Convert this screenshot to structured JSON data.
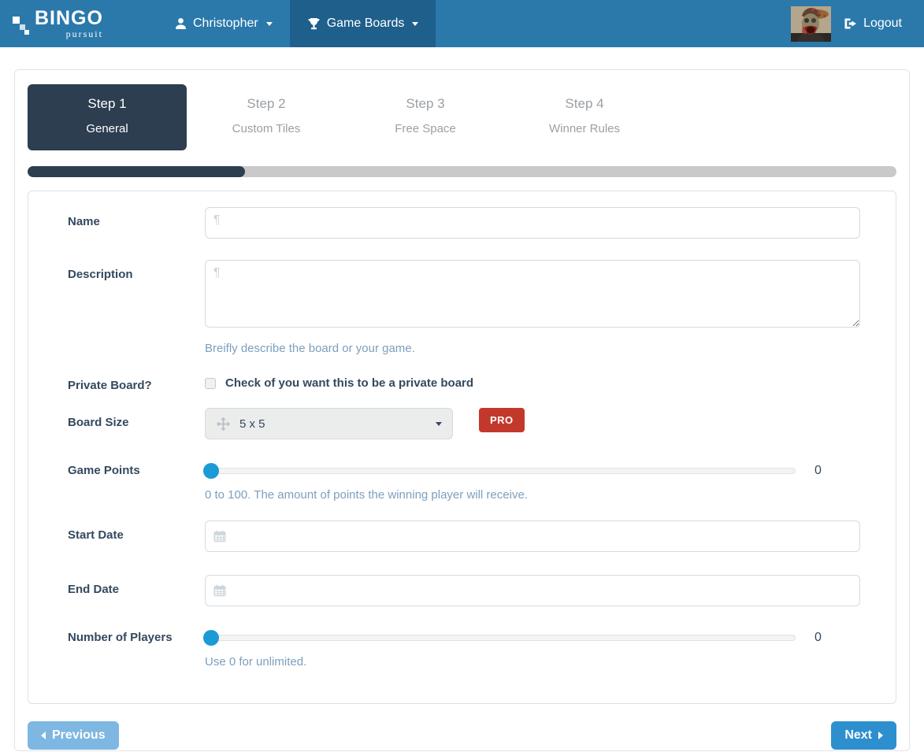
{
  "navbar": {
    "brand": {
      "title": "BINGO",
      "subtitle": "pursuit"
    },
    "user_menu_label": "Christopher",
    "boards_menu_label": "Game Boards",
    "logout_label": "Logout"
  },
  "wizard": {
    "steps": [
      {
        "title": "Step 1",
        "subtitle": "General",
        "active": true
      },
      {
        "title": "Step 2",
        "subtitle": "Custom Tiles",
        "active": false
      },
      {
        "title": "Step 3",
        "subtitle": "Free Space",
        "active": false
      },
      {
        "title": "Step 4",
        "subtitle": "Winner Rules",
        "active": false
      }
    ],
    "progress_percent": 25
  },
  "form": {
    "name": {
      "label": "Name",
      "value": "",
      "placeholder": ""
    },
    "description": {
      "label": "Description",
      "value": "",
      "placeholder": "",
      "help": "Breifly describe the board or your game."
    },
    "private_board": {
      "label": "Private Board?",
      "checkbox_label": "Check of you want this to be a private board",
      "checked": false
    },
    "board_size": {
      "label": "Board Size",
      "value": "5 x 5",
      "badge": "PRO"
    },
    "game_points": {
      "label": "Game Points",
      "value": "0",
      "help": "0 to 100. The amount of points the winning player will receive."
    },
    "start_date": {
      "label": "Start Date",
      "value": "",
      "placeholder": ""
    },
    "end_date": {
      "label": "End Date",
      "value": "",
      "placeholder": ""
    },
    "players": {
      "label": "Number of Players",
      "value": "0",
      "help": "Use 0 for unlimited."
    }
  },
  "buttons": {
    "previous": "Previous",
    "next": "Next"
  },
  "icons": {
    "user": "user-icon",
    "trophy": "trophy-icon",
    "logout": "logout-icon",
    "pilcrow": "¶",
    "calendar": "calendar-icon",
    "move": "move-icon"
  },
  "colors": {
    "navbar_bg": "#2b79ab",
    "navbar_active_bg": "#1e5f8c",
    "step_active_bg": "#2c3e50",
    "label_text": "#34495e",
    "help_text": "#7c9fbe",
    "slider_handle": "#1c9ad6",
    "pro_badge_bg": "#c2392b",
    "next_button_bg": "#2e8fce",
    "previous_button_bg": "#7db7e2"
  }
}
